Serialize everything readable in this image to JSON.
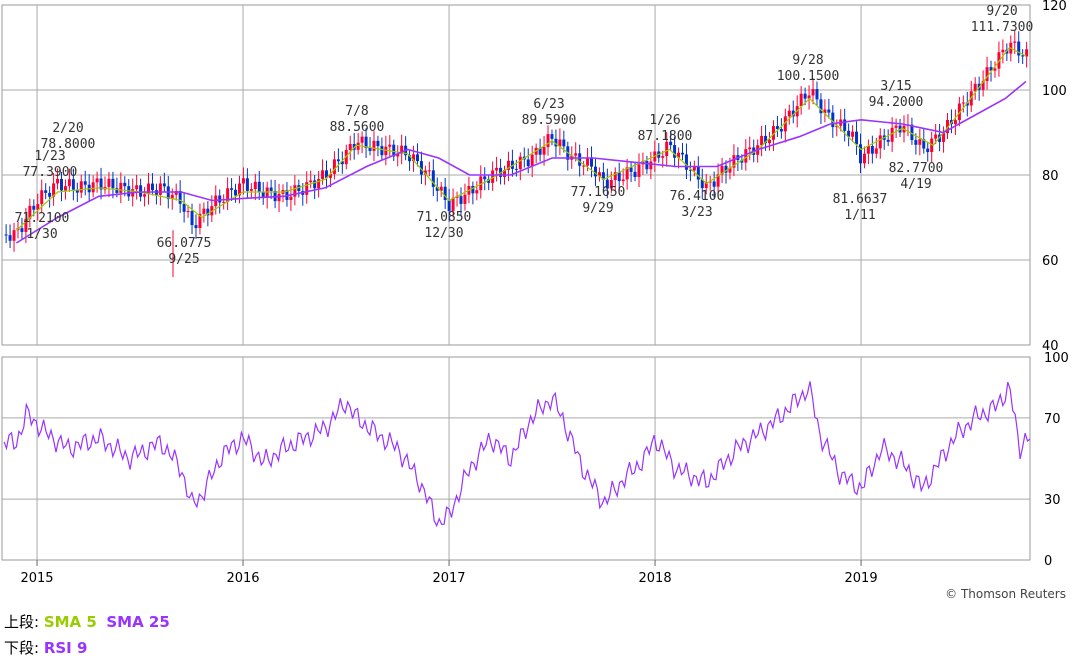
{
  "chart_data": [
    {
      "type": "candlestick",
      "title": "",
      "x_ticks": [
        "2015",
        "2016",
        "2017",
        "2018",
        "2019"
      ],
      "y_ticks": [
        "40",
        "60",
        "80",
        "100",
        "120"
      ],
      "ylim": [
        40,
        120
      ],
      "grid": true,
      "watermark": "© Thomson Reuters",
      "annotations": [
        {
          "date": "1/23",
          "value": "77.3900"
        },
        {
          "date": "2/20",
          "value": "78.8000"
        },
        {
          "date": "1/30",
          "value": "71.2100"
        },
        {
          "date": "9/25",
          "value": "66.0775"
        },
        {
          "date": "7/8",
          "value": "88.5600"
        },
        {
          "date": "12/30",
          "value": "71.0850"
        },
        {
          "date": "6/23",
          "value": "89.5900"
        },
        {
          "date": "9/29",
          "value": "77.1650"
        },
        {
          "date": "1/26",
          "value": "87.1800"
        },
        {
          "date": "3/23",
          "value": "76.4100"
        },
        {
          "date": "9/28",
          "value": "100.1500"
        },
        {
          "date": "1/11",
          "value": "81.6637"
        },
        {
          "date": "3/15",
          "value": "94.2000"
        },
        {
          "date": "4/19",
          "value": "82.7700"
        },
        {
          "date": "9/20",
          "value": "111.7300"
        }
      ],
      "close_approx": [
        [
          2014.9,
          66
        ],
        [
          2015.0,
          74
        ],
        [
          2015.1,
          78
        ],
        [
          2015.2,
          77
        ],
        [
          2015.3,
          78
        ],
        [
          2015.4,
          77
        ],
        [
          2015.5,
          76
        ],
        [
          2015.6,
          77
        ],
        [
          2015.7,
          74
        ],
        [
          2015.75,
          68
        ],
        [
          2015.85,
          73
        ],
        [
          2016.0,
          78
        ],
        [
          2016.1,
          76
        ],
        [
          2016.2,
          75
        ],
        [
          2016.3,
          77
        ],
        [
          2016.4,
          80
        ],
        [
          2016.5,
          85
        ],
        [
          2016.55,
          88
        ],
        [
          2016.6,
          87
        ],
        [
          2016.7,
          86
        ],
        [
          2016.8,
          85
        ],
        [
          2016.9,
          80
        ],
        [
          2017.0,
          73
        ],
        [
          2017.1,
          76
        ],
        [
          2017.2,
          80
        ],
        [
          2017.3,
          82
        ],
        [
          2017.4,
          84
        ],
        [
          2017.5,
          89
        ],
        [
          2017.6,
          84
        ],
        [
          2017.7,
          82
        ],
        [
          2017.75,
          78
        ],
        [
          2017.9,
          81
        ],
        [
          2018.0,
          84
        ],
        [
          2018.07,
          87
        ],
        [
          2018.2,
          80
        ],
        [
          2018.25,
          77
        ],
        [
          2018.35,
          82
        ],
        [
          2018.5,
          87
        ],
        [
          2018.6,
          91
        ],
        [
          2018.75,
          100
        ],
        [
          2018.85,
          93
        ],
        [
          2018.95,
          90
        ],
        [
          2019.0,
          84
        ],
        [
          2019.1,
          88
        ],
        [
          2019.2,
          92
        ],
        [
          2019.3,
          86
        ],
        [
          2019.4,
          90
        ],
        [
          2019.5,
          97
        ],
        [
          2019.6,
          103
        ],
        [
          2019.72,
          111
        ],
        [
          2019.8,
          108
        ]
      ],
      "series": [
        {
          "name": "SMA 5",
          "color": "#99cc00",
          "values": [
            [
              2014.9,
              67
            ],
            [
              2015.1,
              76
            ],
            [
              2015.3,
              77
            ],
            [
              2015.5,
              76
            ],
            [
              2015.7,
              74
            ],
            [
              2015.8,
              70
            ],
            [
              2016.0,
              76
            ],
            [
              2016.2,
              76
            ],
            [
              2016.4,
              79
            ],
            [
              2016.55,
              87
            ],
            [
              2016.8,
              85
            ],
            [
              2017.0,
              74
            ],
            [
              2017.2,
              79
            ],
            [
              2017.5,
              88
            ],
            [
              2017.75,
              79
            ],
            [
              2018.07,
              86
            ],
            [
              2018.25,
              78
            ],
            [
              2018.5,
              86
            ],
            [
              2018.75,
              98
            ],
            [
              2019.0,
              86
            ],
            [
              2019.2,
              91
            ],
            [
              2019.35,
              87
            ],
            [
              2019.5,
              96
            ],
            [
              2019.72,
              110
            ],
            [
              2019.8,
              108
            ]
          ]
        },
        {
          "name": "SMA 25",
          "color": "#9933ff",
          "values": [
            [
              2014.9,
              64
            ],
            [
              2015.1,
              70
            ],
            [
              2015.3,
              75
            ],
            [
              2015.5,
              76
            ],
            [
              2015.7,
              76
            ],
            [
              2015.85,
              74
            ],
            [
              2016.0,
              74.5
            ],
            [
              2016.2,
              75
            ],
            [
              2016.4,
              77
            ],
            [
              2016.6,
              82
            ],
            [
              2016.8,
              86
            ],
            [
              2016.95,
              84
            ],
            [
              2017.1,
              80
            ],
            [
              2017.3,
              80
            ],
            [
              2017.5,
              84
            ],
            [
              2017.7,
              84
            ],
            [
              2017.9,
              83
            ],
            [
              2018.1,
              82
            ],
            [
              2018.3,
              82
            ],
            [
              2018.5,
              86
            ],
            [
              2018.7,
              89
            ],
            [
              2018.85,
              92
            ],
            [
              2019.0,
              93
            ],
            [
              2019.2,
              92
            ],
            [
              2019.4,
              90
            ],
            [
              2019.55,
              94
            ],
            [
              2019.7,
              98
            ],
            [
              2019.8,
              102
            ]
          ]
        }
      ]
    },
    {
      "type": "line",
      "title": "",
      "x_ticks": [
        "2015",
        "2016",
        "2017",
        "2018",
        "2019"
      ],
      "y_ticks": [
        "0",
        "30",
        "70",
        "100"
      ],
      "ylim": [
        0,
        100
      ],
      "grid": true,
      "series": [
        {
          "name": "RSI 9",
          "color": "#9933ff",
          "values": [
            [
              2014.9,
              58
            ],
            [
              2014.95,
              72
            ],
            [
              2015.05,
              62
            ],
            [
              2015.15,
              55
            ],
            [
              2015.3,
              60
            ],
            [
              2015.45,
              50
            ],
            [
              2015.6,
              58
            ],
            [
              2015.7,
              45
            ],
            [
              2015.75,
              27
            ],
            [
              2015.8,
              32
            ],
            [
              2015.9,
              52
            ],
            [
              2016.0,
              60
            ],
            [
              2016.1,
              48
            ],
            [
              2016.2,
              55
            ],
            [
              2016.3,
              60
            ],
            [
              2016.4,
              65
            ],
            [
              2016.5,
              78
            ],
            [
              2016.55,
              70
            ],
            [
              2016.65,
              62
            ],
            [
              2016.75,
              55
            ],
            [
              2016.85,
              40
            ],
            [
              2016.95,
              18
            ],
            [
              2017.0,
              22
            ],
            [
              2017.1,
              45
            ],
            [
              2017.2,
              60
            ],
            [
              2017.3,
              50
            ],
            [
              2017.4,
              70
            ],
            [
              2017.5,
              80
            ],
            [
              2017.55,
              70
            ],
            [
              2017.65,
              45
            ],
            [
              2017.75,
              28
            ],
            [
              2017.85,
              40
            ],
            [
              2017.95,
              50
            ],
            [
              2018.0,
              60
            ],
            [
              2018.1,
              45
            ],
            [
              2018.25,
              38
            ],
            [
              2018.4,
              55
            ],
            [
              2018.5,
              62
            ],
            [
              2018.6,
              70
            ],
            [
              2018.75,
              85
            ],
            [
              2018.8,
              62
            ],
            [
              2018.9,
              42
            ],
            [
              2019.0,
              35
            ],
            [
              2019.1,
              55
            ],
            [
              2019.2,
              48
            ],
            [
              2019.3,
              35
            ],
            [
              2019.45,
              60
            ],
            [
              2019.55,
              70
            ],
            [
              2019.65,
              75
            ],
            [
              2019.72,
              85
            ],
            [
              2019.77,
              55
            ],
            [
              2019.8,
              60
            ]
          ]
        }
      ]
    }
  ],
  "legend": {
    "upper_label": "上段: ",
    "lower_label": "下段: ",
    "sma5": "SMA 5",
    "sma25": "SMA 25",
    "rsi9": "RSI 9"
  }
}
